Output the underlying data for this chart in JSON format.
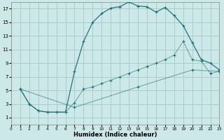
{
  "xlabel": "Humidex (Indice chaleur)",
  "bg_color": "#cce8e8",
  "grid_color": "#aacccc",
  "line_color": "#1a7070",
  "xlim": [
    0,
    23
  ],
  "ylim": [
    0,
    18
  ],
  "xtick_vals": [
    0,
    1,
    2,
    3,
    4,
    5,
    6,
    7,
    8,
    9,
    10,
    11,
    12,
    13,
    14,
    15,
    16,
    17,
    18,
    19,
    20,
    21,
    22,
    23
  ],
  "ytick_vals": [
    1,
    3,
    5,
    7,
    9,
    11,
    13,
    15,
    17
  ],
  "line1_x": [
    1,
    2,
    3,
    4,
    5,
    6,
    7,
    8,
    9,
    10,
    11,
    12,
    13,
    14,
    15,
    16,
    17,
    18,
    19,
    20,
    21,
    22,
    23
  ],
  "line1_y": [
    5.2,
    3.0,
    2.0,
    1.8,
    1.8,
    1.8,
    7.8,
    12.2,
    15.0,
    16.3,
    17.1,
    17.3,
    18.0,
    17.4,
    17.3,
    16.5,
    17.2,
    16.0,
    14.5,
    12.0,
    9.5,
    9.0,
    8.0
  ],
  "line2_x": [
    1,
    2,
    3,
    4,
    5,
    6,
    7,
    8,
    9,
    10,
    11,
    12,
    13,
    14,
    15,
    16,
    17,
    18,
    19,
    20,
    21,
    22,
    23
  ],
  "line2_y": [
    5.2,
    3.0,
    2.0,
    1.8,
    1.8,
    1.8,
    3.2,
    5.2,
    5.5,
    6.0,
    6.5,
    7.0,
    7.5,
    8.0,
    8.5,
    9.0,
    9.5,
    10.2,
    12.2,
    9.5,
    9.3,
    7.5,
    7.8
  ],
  "line3_x": [
    1,
    7,
    14,
    20,
    23
  ],
  "line3_y": [
    5.2,
    2.5,
    5.5,
    8.0,
    7.8
  ]
}
